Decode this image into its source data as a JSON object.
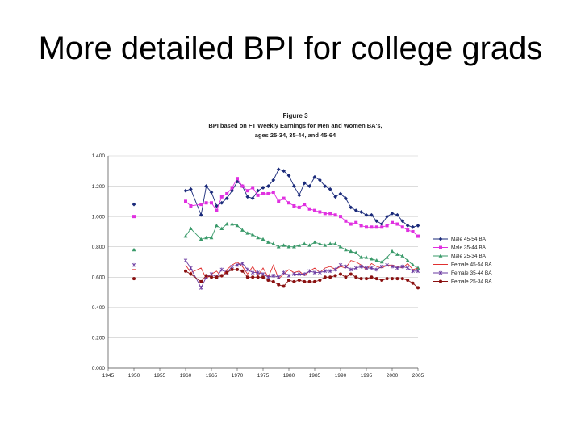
{
  "slide": {
    "title": "More detailed BPI for college grads"
  },
  "chart_data": {
    "type": "line",
    "title_lines": [
      "Figure 3",
      "BPI based on FT Weekly Earnings for Men and Women BA's,",
      "ages 25-34, 35-44, and 45-64"
    ],
    "xlabel": "",
    "ylabel": "",
    "xlim": [
      1945,
      2005
    ],
    "ylim": [
      0,
      1.4
    ],
    "x_ticks": [
      "1945",
      "1950",
      "1955",
      "1960",
      "1965",
      "1970",
      "1975",
      "1980",
      "1985",
      "1990",
      "1995",
      "2000",
      "2005"
    ],
    "x_tick_values": [
      1945,
      1950,
      1955,
      1960,
      1965,
      1970,
      1975,
      1980,
      1985,
      1990,
      1995,
      2000,
      2005
    ],
    "y_ticks": [
      "0.000",
      "0.200",
      "0.400",
      "0.600",
      "0.800",
      "1.000",
      "1.200",
      "1.400"
    ],
    "y_tick_values": [
      0,
      0.2,
      0.4,
      0.6,
      0.8,
      1.0,
      1.2,
      1.4
    ],
    "grid": "horizontal",
    "legend_position": "right",
    "x": [
      1950,
      1960,
      1961,
      1963,
      1964,
      1965,
      1966,
      1967,
      1968,
      1969,
      1970,
      1971,
      1972,
      1973,
      1974,
      1975,
      1976,
      1977,
      1978,
      1979,
      1980,
      1981,
      1982,
      1983,
      1984,
      1985,
      1986,
      1987,
      1988,
      1989,
      1990,
      1991,
      1992,
      1993,
      1994,
      1995,
      1996,
      1997,
      1998,
      1999,
      2000,
      2001,
      2002,
      2003,
      2004,
      2005
    ],
    "series": [
      {
        "name": "Male 45-54 BA",
        "color": "#1a2a7a",
        "marker": "diamond",
        "values": [
          1.08,
          1.17,
          1.18,
          1.01,
          1.2,
          1.16,
          1.07,
          1.09,
          1.12,
          1.17,
          1.23,
          1.2,
          1.13,
          1.12,
          1.17,
          1.19,
          1.2,
          1.24,
          1.31,
          1.3,
          1.27,
          1.2,
          1.14,
          1.22,
          1.2,
          1.26,
          1.24,
          1.2,
          1.18,
          1.13,
          1.15,
          1.12,
          1.06,
          1.04,
          1.03,
          1.01,
          1.01,
          0.97,
          0.95,
          1.0,
          1.02,
          1.01,
          0.97,
          0.94,
          0.93,
          0.94
        ]
      },
      {
        "name": "Male 35-44 BA",
        "color": "#e030e0",
        "marker": "square",
        "values": [
          1.0,
          1.1,
          1.07,
          1.08,
          1.09,
          1.09,
          1.04,
          1.13,
          1.15,
          1.19,
          1.25,
          1.2,
          1.17,
          1.19,
          1.14,
          1.15,
          1.15,
          1.16,
          1.1,
          1.12,
          1.09,
          1.07,
          1.06,
          1.08,
          1.05,
          1.04,
          1.03,
          1.02,
          1.02,
          1.01,
          1.0,
          0.97,
          0.95,
          0.96,
          0.94,
          0.93,
          0.93,
          0.93,
          0.93,
          0.94,
          0.96,
          0.95,
          0.93,
          0.91,
          0.9,
          0.87
        ]
      },
      {
        "name": "Male 25-34 BA",
        "color": "#3a9a6a",
        "marker": "triangle",
        "values": [
          0.78,
          0.87,
          0.92,
          0.85,
          0.86,
          0.86,
          0.94,
          0.92,
          0.95,
          0.95,
          0.94,
          0.91,
          0.89,
          0.88,
          0.86,
          0.85,
          0.83,
          0.82,
          0.8,
          0.81,
          0.8,
          0.8,
          0.81,
          0.82,
          0.81,
          0.83,
          0.82,
          0.81,
          0.82,
          0.82,
          0.8,
          0.78,
          0.77,
          0.76,
          0.73,
          0.73,
          0.72,
          0.71,
          0.7,
          0.73,
          0.77,
          0.75,
          0.74,
          0.71,
          0.68,
          0.66
        ]
      },
      {
        "name": "Female 45-54 BA",
        "color": "#e03030",
        "marker": "none",
        "values": [
          0.65,
          0.68,
          0.63,
          0.66,
          0.59,
          0.62,
          0.64,
          0.6,
          0.65,
          0.68,
          0.7,
          0.67,
          0.62,
          0.67,
          0.61,
          0.66,
          0.6,
          0.68,
          0.59,
          0.62,
          0.65,
          0.63,
          0.64,
          0.61,
          0.64,
          0.66,
          0.63,
          0.66,
          0.67,
          0.65,
          0.67,
          0.66,
          0.71,
          0.7,
          0.68,
          0.65,
          0.69,
          0.67,
          0.66,
          0.68,
          0.68,
          0.67,
          0.66,
          0.69,
          0.65,
          0.66
        ]
      },
      {
        "name": "Female 35-44 BA",
        "color": "#6a3aa0",
        "marker": "x",
        "values": [
          0.68,
          0.71,
          0.66,
          0.53,
          0.6,
          0.62,
          0.6,
          0.65,
          0.63,
          0.67,
          0.68,
          0.69,
          0.65,
          0.63,
          0.63,
          0.62,
          0.6,
          0.61,
          0.6,
          0.63,
          0.61,
          0.62,
          0.62,
          0.62,
          0.64,
          0.63,
          0.63,
          0.64,
          0.64,
          0.65,
          0.68,
          0.67,
          0.65,
          0.66,
          0.67,
          0.66,
          0.66,
          0.65,
          0.67,
          0.68,
          0.67,
          0.66,
          0.67,
          0.66,
          0.64,
          0.64
        ]
      },
      {
        "name": "Female 25-34 BA",
        "color": "#8a1010",
        "marker": "circle",
        "values": [
          0.59,
          0.64,
          0.62,
          0.57,
          0.61,
          0.6,
          0.6,
          0.61,
          0.63,
          0.65,
          0.65,
          0.64,
          0.6,
          0.6,
          0.6,
          0.6,
          0.58,
          0.57,
          0.55,
          0.54,
          0.58,
          0.57,
          0.58,
          0.57,
          0.57,
          0.57,
          0.58,
          0.6,
          0.6,
          0.61,
          0.62,
          0.6,
          0.62,
          0.6,
          0.59,
          0.59,
          0.6,
          0.59,
          0.58,
          0.59,
          0.59,
          0.59,
          0.59,
          0.58,
          0.56,
          0.53
        ]
      }
    ]
  }
}
